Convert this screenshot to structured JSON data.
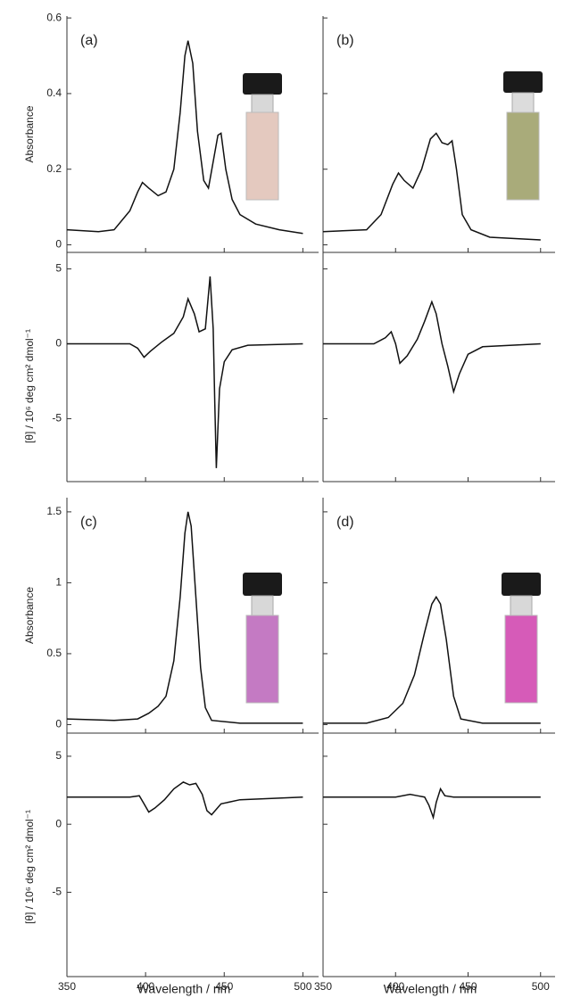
{
  "chart_data": [
    {
      "type": "line",
      "panel_label": "(a)",
      "y_label": "Absorbance",
      "x": [
        350,
        370,
        380,
        390,
        395,
        398,
        402,
        408,
        413,
        418,
        422,
        425,
        427,
        430,
        433,
        437,
        440,
        443,
        446,
        448,
        451,
        455,
        460,
        470,
        485,
        500
      ],
      "series": [
        {
          "color": "#111111",
          "values": [
            0.04,
            0.035,
            0.04,
            0.09,
            0.14,
            0.165,
            0.15,
            0.13,
            0.14,
            0.2,
            0.35,
            0.5,
            0.54,
            0.48,
            0.3,
            0.17,
            0.15,
            0.22,
            0.29,
            0.295,
            0.2,
            0.12,
            0.08,
            0.055,
            0.04,
            0.03
          ]
        }
      ],
      "xlim": [
        350,
        510
      ],
      "ylim": [
        -0.02,
        0.605
      ],
      "yticks": [
        0,
        0.2,
        0.4,
        0.6
      ]
    },
    {
      "type": "line",
      "y_label": "[θ] / 10⁶ deg cm² dmol⁻¹",
      "x": [
        350,
        390,
        395,
        399,
        403,
        410,
        418,
        424,
        427,
        431,
        434,
        438,
        441,
        443,
        444,
        445,
        447,
        450,
        455,
        465,
        500
      ],
      "series": [
        {
          "color": "#111111",
          "values": [
            0,
            0,
            -0.3,
            -0.9,
            -0.5,
            0.1,
            0.7,
            1.8,
            3.0,
            2.0,
            0.8,
            1.0,
            4.5,
            1.0,
            -4,
            -8.3,
            -3,
            -1.2,
            -0.4,
            -0.1,
            0
          ]
        }
      ],
      "xlim": [
        350,
        510
      ],
      "ylim": [
        -9.2,
        6.1
      ],
      "yticks": [
        5,
        0,
        -5
      ]
    },
    {
      "type": "line",
      "panel_label": "(b)",
      "x": [
        350,
        380,
        390,
        398,
        402,
        406,
        412,
        418,
        424,
        428,
        432,
        436,
        439,
        442,
        446,
        452,
        465,
        500
      ],
      "series": [
        {
          "color": "#111111",
          "values": [
            0.035,
            0.04,
            0.08,
            0.16,
            0.19,
            0.17,
            0.15,
            0.2,
            0.28,
            0.295,
            0.27,
            0.265,
            0.275,
            0.2,
            0.08,
            0.04,
            0.02,
            0.013
          ]
        }
      ],
      "xlim": [
        350,
        510
      ],
      "ylim": [
        -0.02,
        0.605
      ]
    },
    {
      "type": "line",
      "x": [
        350,
        385,
        393,
        397,
        400,
        403,
        408,
        415,
        420,
        425,
        428,
        432,
        436,
        440,
        444,
        450,
        460,
        500
      ],
      "series": [
        {
          "color": "#111111",
          "values": [
            0,
            0,
            0.4,
            0.8,
            0,
            -1.3,
            -0.8,
            0.3,
            1.5,
            2.8,
            2.0,
            0,
            -1.5,
            -3.2,
            -2,
            -0.7,
            -0.2,
            0
          ]
        }
      ],
      "xlim": [
        350,
        510
      ],
      "ylim": [
        -9.2,
        6.1
      ]
    },
    {
      "type": "line",
      "panel_label": "(c)",
      "y_label": "Absorbance",
      "x": [
        350,
        380,
        395,
        402,
        408,
        413,
        418,
        422,
        425,
        427,
        429,
        432,
        435,
        438,
        442,
        460,
        500
      ],
      "series": [
        {
          "color": "#111111",
          "values": [
            0.04,
            0.03,
            0.04,
            0.08,
            0.13,
            0.2,
            0.45,
            0.9,
            1.35,
            1.5,
            1.4,
            0.9,
            0.4,
            0.12,
            0.03,
            0.01,
            0.01
          ]
        }
      ],
      "xlim": [
        350,
        510
      ],
      "ylim": [
        -0.06,
        1.6
      ],
      "yticks": [
        0,
        0.5,
        1,
        1.5
      ]
    },
    {
      "type": "line",
      "y_label": "[θ] / 10⁶ deg cm² dmol⁻¹",
      "x_label": "Wavelength / nm",
      "x": [
        350,
        390,
        396,
        399,
        402,
        406,
        412,
        418,
        424,
        428,
        432,
        436,
        439,
        442,
        448,
        460,
        500
      ],
      "series": [
        {
          "color": "#111111",
          "values": [
            2,
            2,
            2.1,
            1.5,
            0.9,
            1.2,
            1.8,
            2.6,
            3.1,
            2.9,
            3.0,
            2.2,
            1.0,
            0.7,
            1.5,
            1.8,
            2
          ]
        }
      ],
      "xlim": [
        350,
        510
      ],
      "ylim": [
        -11.2,
        6.7
      ],
      "yticks": [
        5,
        0,
        -5
      ],
      "xticks": [
        350,
        400,
        450,
        500
      ]
    },
    {
      "type": "line",
      "panel_label": "(d)",
      "x": [
        350,
        380,
        395,
        405,
        413,
        420,
        425,
        428,
        431,
        435,
        440,
        445,
        460,
        500
      ],
      "series": [
        {
          "color": "#111111",
          "values": [
            0.01,
            0.01,
            0.05,
            0.15,
            0.35,
            0.65,
            0.85,
            0.9,
            0.85,
            0.6,
            0.2,
            0.04,
            0.01,
            0.01
          ]
        }
      ],
      "xlim": [
        350,
        510
      ],
      "ylim": [
        -0.06,
        1.6
      ]
    },
    {
      "type": "line",
      "x_label": "Wavelength / nm",
      "x": [
        350,
        400,
        410,
        415,
        420,
        423,
        426,
        428,
        431,
        434,
        440,
        500
      ],
      "series": [
        {
          "color": "#111111",
          "values": [
            2,
            2,
            2.2,
            2.1,
            2,
            1.4,
            0.5,
            1.6,
            2.6,
            2.1,
            2,
            2
          ]
        }
      ],
      "xlim": [
        350,
        510
      ],
      "ylim": [
        -11.2,
        6.7
      ],
      "xticks": [
        350,
        400,
        450,
        500
      ]
    }
  ]
}
